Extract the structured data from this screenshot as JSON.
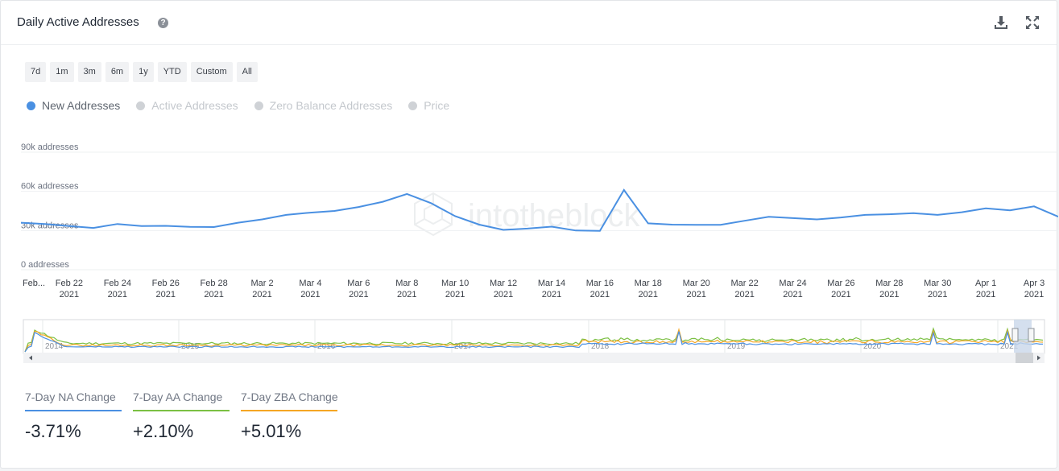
{
  "header": {
    "title": "Daily Active Addresses",
    "help_icon": "question-circle-icon",
    "download_icon": "download-icon",
    "expand_icon": "expand-icon"
  },
  "ranges": [
    "7d",
    "1m",
    "3m",
    "6m",
    "1y",
    "YTD",
    "Custom",
    "All"
  ],
  "legend": [
    {
      "label": "New Addresses",
      "color": "#4a90e2",
      "active": true
    },
    {
      "label": "Active Addresses",
      "color": "#cfd2d6",
      "active": false
    },
    {
      "label": "Zero Balance Addresses",
      "color": "#cfd2d6",
      "active": false
    },
    {
      "label": "Price",
      "color": "#cfd2d6",
      "active": false
    }
  ],
  "colors": {
    "new": "#4a90e2",
    "active": "#7bc043",
    "zero": "#f5a623",
    "grid": "#eef0f2",
    "text": "#1f2733"
  },
  "watermark": "intotheblock",
  "chart_data": {
    "type": "line",
    "ylim": [
      0,
      90000
    ],
    "y_ticks": [
      {
        "value": 0,
        "label": "0 addresses"
      },
      {
        "value": 30000,
        "label": "30k addresses"
      },
      {
        "value": 60000,
        "label": "60k addresses"
      },
      {
        "value": 90000,
        "label": "90k addresses"
      }
    ],
    "x_ticks": [
      {
        "line1": "Feb...",
        "line2": ""
      },
      {
        "line1": "Feb 22",
        "line2": "2021"
      },
      {
        "line1": "Feb 24",
        "line2": "2021"
      },
      {
        "line1": "Feb 26",
        "line2": "2021"
      },
      {
        "line1": "Feb 28",
        "line2": "2021"
      },
      {
        "line1": "Mar 2",
        "line2": "2021"
      },
      {
        "line1": "Mar 4",
        "line2": "2021"
      },
      {
        "line1": "Mar 6",
        "line2": "2021"
      },
      {
        "line1": "Mar 8",
        "line2": "2021"
      },
      {
        "line1": "Mar 10",
        "line2": "2021"
      },
      {
        "line1": "Mar 12",
        "line2": "2021"
      },
      {
        "line1": "Mar 14",
        "line2": "2021"
      },
      {
        "line1": "Mar 16",
        "line2": "2021"
      },
      {
        "line1": "Mar 18",
        "line2": "2021"
      },
      {
        "line1": "Mar 20",
        "line2": "2021"
      },
      {
        "line1": "Mar 22",
        "line2": "2021"
      },
      {
        "line1": "Mar 24",
        "line2": "2021"
      },
      {
        "line1": "Mar 26",
        "line2": "2021"
      },
      {
        "line1": "Mar 28",
        "line2": "2021"
      },
      {
        "line1": "Mar 30",
        "line2": "2021"
      },
      {
        "line1": "Apr 1",
        "line2": "2021"
      },
      {
        "line1": "Apr 3",
        "line2": "2021"
      }
    ],
    "series": [
      {
        "name": "New Addresses",
        "x": [
          "2021-02-20",
          "2021-02-21",
          "2021-02-22",
          "2021-02-23",
          "2021-02-24",
          "2021-02-25",
          "2021-02-26",
          "2021-02-27",
          "2021-02-28",
          "2021-03-01",
          "2021-03-02",
          "2021-03-03",
          "2021-03-04",
          "2021-03-05",
          "2021-03-06",
          "2021-03-07",
          "2021-03-08",
          "2021-03-09",
          "2021-03-10",
          "2021-03-11",
          "2021-03-12",
          "2021-03-13",
          "2021-03-14",
          "2021-03-15",
          "2021-03-16",
          "2021-03-17",
          "2021-03-18",
          "2021-03-19",
          "2021-03-20",
          "2021-03-21",
          "2021-03-22",
          "2021-03-23",
          "2021-03-24",
          "2021-03-25",
          "2021-03-26",
          "2021-03-27",
          "2021-03-28",
          "2021-03-29",
          "2021-03-30",
          "2021-03-31",
          "2021-04-01",
          "2021-04-02",
          "2021-04-03",
          "2021-04-04"
        ],
        "values": [
          36000,
          35000,
          33500,
          32000,
          35000,
          33500,
          33600,
          32800,
          32700,
          36000,
          38500,
          42000,
          43700,
          45000,
          48000,
          52000,
          58000,
          51000,
          41000,
          34500,
          30500,
          31500,
          33000,
          30000,
          29700,
          61000,
          35500,
          34500,
          34400,
          34400,
          37500,
          40500,
          39500,
          38500,
          40000,
          42000,
          42500,
          43300,
          42000,
          44000,
          47000,
          45500,
          48500,
          40600
        ]
      }
    ]
  },
  "navigator": {
    "year_labels": [
      "2014",
      "2015",
      "2016",
      "2017",
      "2018",
      "2019",
      "2020",
      "2021"
    ]
  },
  "stats": [
    {
      "label": "7-Day NA Change",
      "value": "-3.71%",
      "color": "#4a90e2"
    },
    {
      "label": "7-Day AA Change",
      "value": "+2.10%",
      "color": "#7bc043"
    },
    {
      "label": "7-Day ZBA Change",
      "value": "+5.01%",
      "color": "#f5a623"
    }
  ]
}
